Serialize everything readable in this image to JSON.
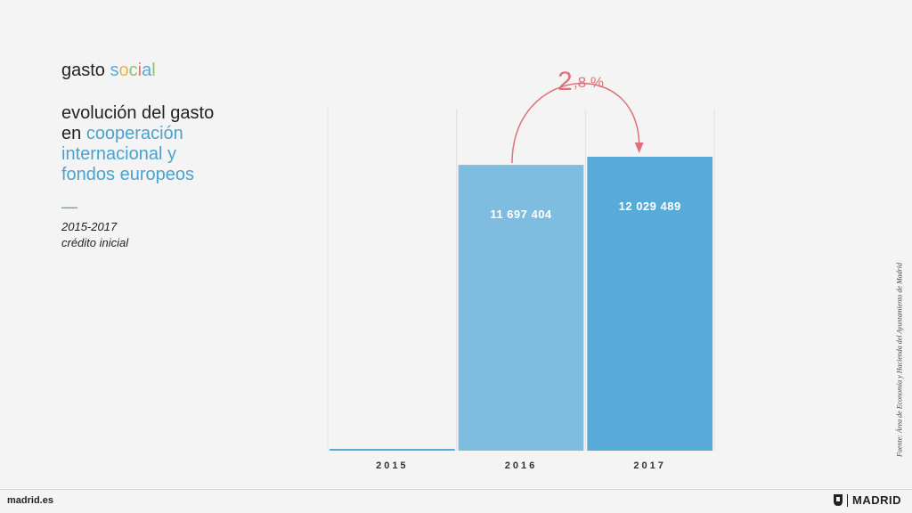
{
  "header": {
    "section_letters": [
      "gasto ",
      "s",
      "o",
      "c",
      "i",
      "a",
      "l"
    ],
    "title_plain": "evolución del gasto",
    "title_prefix": "en ",
    "title_accent_1": "cooperación",
    "title_accent_2": "internacional y",
    "title_accent_3": "fondos europeos",
    "dash": "—",
    "period": "2015-2017",
    "period_note": "crédito inicial"
  },
  "source": "Fuente: Área de Economía y Hacienda del Ayuntamiento de Madrid",
  "footer": {
    "site": "madrid.es",
    "brand": "MADRID",
    "logo_icon": "madrid-shield-icon"
  },
  "colors": {
    "bar_2015": "#5aa9d6",
    "bar_2016": "#7fbde0",
    "bar_2017": "#58aad8",
    "arrow": "#e0707a"
  },
  "chart_data": {
    "type": "bar",
    "categories": [
      "2015",
      "2016",
      "2017"
    ],
    "values": [
      0,
      11697404,
      12029489
    ],
    "value_labels": [
      "",
      "11 697 404",
      "12 029 489"
    ],
    "growth_label_big": "2",
    "growth_label_small": ",8 %",
    "grid": true
  }
}
